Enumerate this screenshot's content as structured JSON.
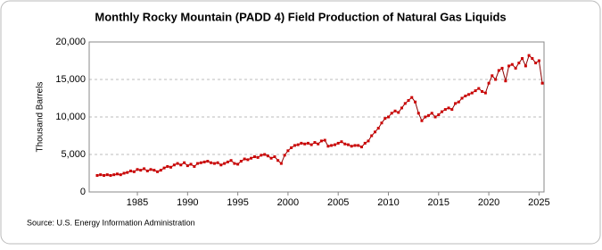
{
  "chart_data": {
    "type": "line",
    "title": "Monthly Rocky Mountain (PADD 4) Field Production of Natural Gas Liquids",
    "y_label": "Thousand Barrels",
    "source": "Source: U.S. Energy Information Administration",
    "x": [
      1981,
      1981.33,
      1981.67,
      1982,
      1982.33,
      1982.67,
      1983,
      1983.33,
      1983.67,
      1984,
      1984.33,
      1984.67,
      1985,
      1985.33,
      1985.67,
      1986,
      1986.33,
      1986.67,
      1987,
      1987.33,
      1987.67,
      1988,
      1988.33,
      1988.67,
      1989,
      1989.33,
      1989.67,
      1990,
      1990.33,
      1990.67,
      1991,
      1991.33,
      1991.67,
      1992,
      1992.33,
      1992.67,
      1993,
      1993.33,
      1993.67,
      1994,
      1994.33,
      1994.67,
      1995,
      1995.33,
      1995.67,
      1996,
      1996.33,
      1996.67,
      1997,
      1997.33,
      1997.67,
      1998,
      1998.33,
      1998.67,
      1999,
      1999.33,
      1999.67,
      2000,
      2000.33,
      2000.67,
      2001,
      2001.33,
      2001.67,
      2002,
      2002.33,
      2002.67,
      2003,
      2003.33,
      2003.67,
      2004,
      2004.33,
      2004.67,
      2005,
      2005.33,
      2005.67,
      2006,
      2006.33,
      2006.67,
      2007,
      2007.33,
      2007.67,
      2008,
      2008.33,
      2008.67,
      2009,
      2009.33,
      2009.67,
      2010,
      2010.33,
      2010.67,
      2011,
      2011.33,
      2011.67,
      2012,
      2012.33,
      2012.67,
      2013,
      2013.33,
      2013.67,
      2014,
      2014.33,
      2014.67,
      2015,
      2015.33,
      2015.67,
      2016,
      2016.33,
      2016.67,
      2017,
      2017.33,
      2017.67,
      2018,
      2018.33,
      2018.67,
      2019,
      2019.33,
      2019.67,
      2020,
      2020.33,
      2020.67,
      2021,
      2021.33,
      2021.67,
      2022,
      2022.33,
      2022.67,
      2023,
      2023.33,
      2023.67,
      2024,
      2024.33,
      2024.67,
      2025,
      2025.33
    ],
    "series": [
      {
        "color": "#cc0000",
        "values": [
          2200,
          2300,
          2200,
          2300,
          2200,
          2300,
          2400,
          2300,
          2500,
          2600,
          2800,
          2700,
          3000,
          2900,
          3100,
          2800,
          3000,
          2900,
          2700,
          2900,
          3200,
          3400,
          3300,
          3600,
          3800,
          3600,
          3900,
          3500,
          3700,
          3400,
          3800,
          3900,
          4000,
          4100,
          3900,
          3800,
          3900,
          3600,
          3800,
          4000,
          4200,
          3800,
          3700,
          4100,
          4400,
          4300,
          4500,
          4700,
          4600,
          4900,
          5000,
          4800,
          4500,
          4700,
          4200,
          3800,
          4900,
          5500,
          5900,
          6200,
          6300,
          6500,
          6400,
          6500,
          6300,
          6600,
          6400,
          6800,
          6900,
          6100,
          6200,
          6300,
          6500,
          6700,
          6400,
          6300,
          6100,
          6200,
          6200,
          6000,
          6500,
          6800,
          7500,
          8000,
          8500,
          9200,
          9800,
          10000,
          10500,
          10800,
          10600,
          11200,
          11800,
          12200,
          12600,
          12000,
          10500,
          9500,
          10000,
          10200,
          10500,
          10000,
          10300,
          10700,
          11000,
          11200,
          11000,
          11800,
          12000,
          12500,
          12800,
          13000,
          13200,
          13500,
          13800,
          13400,
          13200,
          14500,
          15500,
          15000,
          16200,
          16500,
          14800,
          16800,
          17000,
          16500,
          17200,
          17800,
          16800,
          18200,
          17800,
          17200,
          17500,
          14500
        ]
      }
    ],
    "xlim": [
      1980.2,
      2025.5
    ],
    "xticks": [
      1985,
      1990,
      1995,
      2000,
      2005,
      2010,
      2015,
      2020,
      2025
    ],
    "ylim": [
      0,
      20000
    ],
    "yticks": [
      0,
      {
        "value": 5000,
        "label": "5,000"
      },
      {
        "value": 10000,
        "label": "10,000"
      },
      {
        "value": 15000,
        "label": "15,000"
      },
      {
        "value": 20000,
        "label": "20,000"
      }
    ],
    "grid": true
  }
}
